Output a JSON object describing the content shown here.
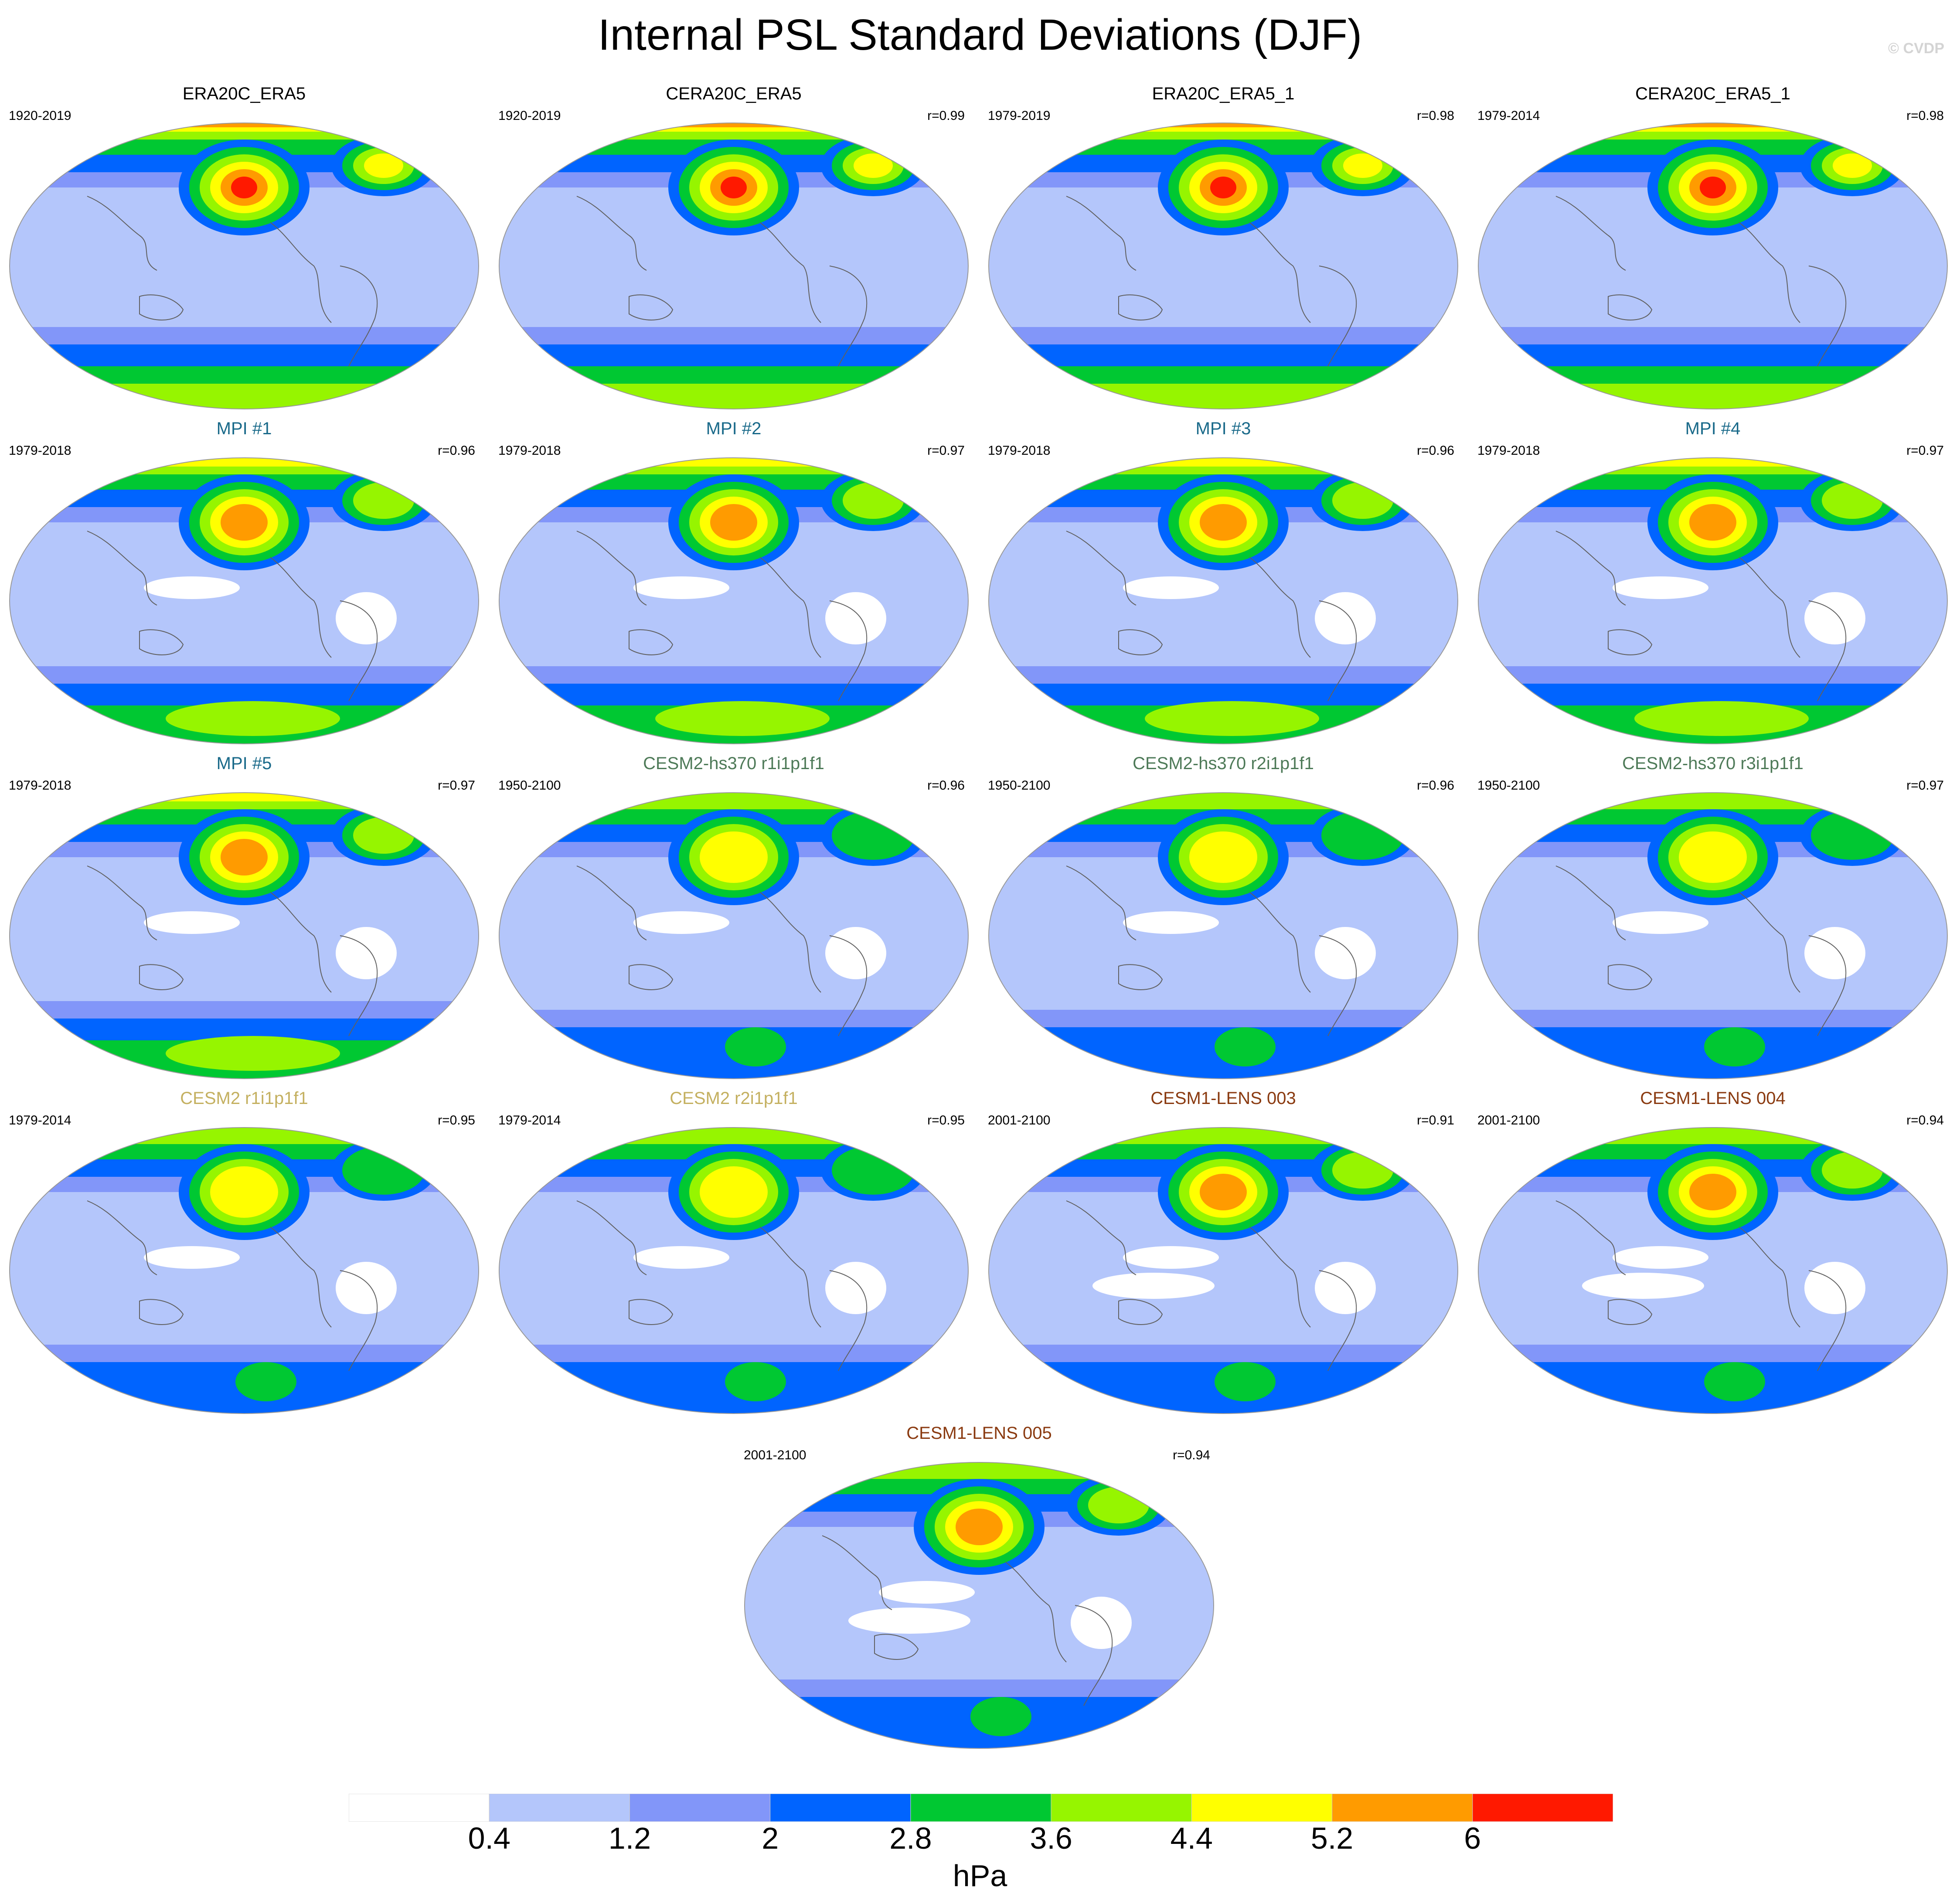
{
  "title": "Internal PSL Standard Deviations (DJF)",
  "watermark": "© CVDP",
  "colorbar": {
    "colors": [
      "#ffffff",
      "#b4c6fb",
      "#8296f9",
      "#0064ff",
      "#00c832",
      "#96f500",
      "#ffff00",
      "#ff9b00",
      "#ff1900"
    ],
    "labels": [
      "0.4",
      "1.2",
      "2",
      "2.8",
      "3.6",
      "4.4",
      "5.2",
      "6"
    ],
    "unit": "hPa"
  },
  "panels": [
    {
      "title": "ERA20C_ERA5",
      "years": "1920-2019",
      "r": "",
      "title_color": "#000000"
    },
    {
      "title": "CERA20C_ERA5",
      "years": "1920-2019",
      "r": "r=0.99",
      "title_color": "#000000"
    },
    {
      "title": "ERA20C_ERA5_1",
      "years": "1979-2019",
      "r": "r=0.98",
      "title_color": "#000000"
    },
    {
      "title": "CERA20C_ERA5_1",
      "years": "1979-2014",
      "r": "r=0.98",
      "title_color": "#000000"
    },
    {
      "title": "MPI #1",
      "years": "1979-2018",
      "r": "r=0.96",
      "title_color": "#1a6a8a"
    },
    {
      "title": "MPI #2",
      "years": "1979-2018",
      "r": "r=0.97",
      "title_color": "#1a6a8a"
    },
    {
      "title": "MPI #3",
      "years": "1979-2018",
      "r": "r=0.96",
      "title_color": "#1a6a8a"
    },
    {
      "title": "MPI #4",
      "years": "1979-2018",
      "r": "r=0.97",
      "title_color": "#1a6a8a"
    },
    {
      "title": "MPI #5",
      "years": "1979-2018",
      "r": "r=0.97",
      "title_color": "#1a6a8a"
    },
    {
      "title": "CESM2-hs370 r1i1p1f1",
      "years": "1950-2100",
      "r": "r=0.96",
      "title_color": "#4e7a58"
    },
    {
      "title": "CESM2-hs370 r2i1p1f1",
      "years": "1950-2100",
      "r": "r=0.96",
      "title_color": "#4e7a58"
    },
    {
      "title": "CESM2-hs370 r3i1p1f1",
      "years": "1950-2100",
      "r": "r=0.97",
      "title_color": "#4e7a58"
    },
    {
      "title": "CESM2 r1i1p1f1",
      "years": "1979-2014",
      "r": "r=0.95",
      "title_color": "#c4b060"
    },
    {
      "title": "CESM2 r2i1p1f1",
      "years": "1979-2014",
      "r": "r=0.95",
      "title_color": "#c4b060"
    },
    {
      "title": "CESM1-LENS 003",
      "years": "2001-2100",
      "r": "r=0.91",
      "title_color": "#8a3a10"
    },
    {
      "title": "CESM1-LENS 004",
      "years": "2001-2100",
      "r": "r=0.94",
      "title_color": "#8a3a10"
    },
    {
      "title": "CESM1-LENS 005",
      "years": "2001-2100",
      "r": "r=0.94",
      "title_color": "#8a3a10"
    }
  ]
}
